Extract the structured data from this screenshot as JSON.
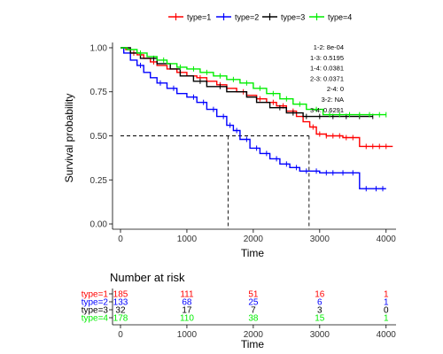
{
  "chart_data": [
    {
      "type": "line",
      "subtype": "step",
      "xlabel": "Time",
      "ylabel": "Survival probability",
      "xlim": [
        -120,
        4150
      ],
      "ylim": [
        -0.03,
        1.03
      ],
      "xticks": [
        0,
        1000,
        2000,
        3000,
        4000
      ],
      "yticks": [
        0.0,
        0.25,
        0.5,
        0.75,
        1.0
      ],
      "ytick_labels": [
        "0.00",
        "0.25",
        "0.50",
        "0.75",
        "1.00"
      ],
      "grid": false,
      "legend": "top",
      "series": [
        {
          "name": "type=1",
          "color": "#ff0000",
          "points": [
            [
              0,
              1.0
            ],
            [
              80,
              0.99
            ],
            [
              150,
              0.97
            ],
            [
              250,
              0.96
            ],
            [
              350,
              0.94
            ],
            [
              450,
              0.92
            ],
            [
              550,
              0.9
            ],
            [
              700,
              0.88
            ],
            [
              850,
              0.86
            ],
            [
              1000,
              0.84
            ],
            [
              1150,
              0.83
            ],
            [
              1300,
              0.81
            ],
            [
              1450,
              0.79
            ],
            [
              1600,
              0.77
            ],
            [
              1750,
              0.75
            ],
            [
              1900,
              0.73
            ],
            [
              2050,
              0.71
            ],
            [
              2200,
              0.69
            ],
            [
              2350,
              0.67
            ],
            [
              2500,
              0.64
            ],
            [
              2650,
              0.61
            ],
            [
              2750,
              0.58
            ],
            [
              2850,
              0.55
            ],
            [
              2950,
              0.51
            ],
            [
              3100,
              0.5
            ],
            [
              3350,
              0.49
            ],
            [
              3600,
              0.44
            ],
            [
              4100,
              0.44
            ]
          ],
          "censor": [
            200,
            500,
            900,
            1200,
            1500,
            1850,
            2100,
            2300,
            2450,
            2600,
            2900,
            3000,
            3100,
            3200,
            3300,
            3400,
            3500,
            3700,
            3800,
            3900,
            4000
          ]
        },
        {
          "name": "type=2",
          "color": "#0000ff",
          "points": [
            [
              0,
              1.0
            ],
            [
              50,
              0.97
            ],
            [
              150,
              0.93
            ],
            [
              250,
              0.9
            ],
            [
              350,
              0.86
            ],
            [
              450,
              0.83
            ],
            [
              550,
              0.8
            ],
            [
              700,
              0.77
            ],
            [
              850,
              0.74
            ],
            [
              1000,
              0.72
            ],
            [
              1150,
              0.69
            ],
            [
              1300,
              0.65
            ],
            [
              1450,
              0.61
            ],
            [
              1600,
              0.56
            ],
            [
              1700,
              0.53
            ],
            [
              1800,
              0.48
            ],
            [
              1950,
              0.43
            ],
            [
              2100,
              0.4
            ],
            [
              2250,
              0.37
            ],
            [
              2400,
              0.34
            ],
            [
              2550,
              0.32
            ],
            [
              2700,
              0.3
            ],
            [
              3000,
              0.29
            ],
            [
              3600,
              0.2
            ],
            [
              4000,
              0.2
            ]
          ],
          "censor": [
            300,
            600,
            800,
            1100,
            1250,
            1400,
            1550,
            1650,
            1750,
            1900,
            2050,
            2200,
            2350,
            2500,
            2650,
            2800,
            2950,
            3100,
            3200,
            3350,
            3500,
            3700,
            3850,
            3950
          ]
        },
        {
          "name": "type=3",
          "color": "#000000",
          "points": [
            [
              0,
              1.0
            ],
            [
              150,
              0.97
            ],
            [
              300,
              0.94
            ],
            [
              550,
              0.91
            ],
            [
              750,
              0.88
            ],
            [
              900,
              0.84
            ],
            [
              1100,
              0.81
            ],
            [
              1300,
              0.78
            ],
            [
              1600,
              0.75
            ],
            [
              1900,
              0.72
            ],
            [
              2050,
              0.69
            ],
            [
              2250,
              0.66
            ],
            [
              2500,
              0.63
            ],
            [
              2750,
              0.61
            ],
            [
              3000,
              0.61
            ],
            [
              3800,
              0.61
            ]
          ],
          "censor": [
            500,
            1200,
            1500,
            2400,
            2600,
            2800,
            3000,
            3200,
            3400,
            3600,
            3800
          ]
        },
        {
          "name": "type=4",
          "color": "#00ee00",
          "points": [
            [
              0,
              1.0
            ],
            [
              100,
              0.99
            ],
            [
              250,
              0.97
            ],
            [
              400,
              0.95
            ],
            [
              550,
              0.93
            ],
            [
              700,
              0.91
            ],
            [
              850,
              0.89
            ],
            [
              1000,
              0.88
            ],
            [
              1200,
              0.86
            ],
            [
              1400,
              0.84
            ],
            [
              1600,
              0.82
            ],
            [
              1800,
              0.8
            ],
            [
              2000,
              0.77
            ],
            [
              2200,
              0.74
            ],
            [
              2400,
              0.71
            ],
            [
              2600,
              0.68
            ],
            [
              2800,
              0.65
            ],
            [
              3050,
              0.62
            ],
            [
              3300,
              0.62
            ],
            [
              4000,
              0.62
            ]
          ],
          "censor": [
            300,
            650,
            900,
            1100,
            1300,
            1500,
            1700,
            1900,
            2100,
            2300,
            2500,
            2700,
            2950,
            3150,
            3300,
            3450,
            3600,
            3750,
            3900,
            4000
          ]
        }
      ],
      "median_line_y": 0.5,
      "median_x": [
        1620,
        2840
      ],
      "pvalue_lines": [
        "1-2: 8e-04",
        "1-3: 0.5195",
        "1-4: 0.0381",
        "2-3: 0.0371",
        "2-4: 0",
        "3-2: NA",
        "3-4: 0.6291"
      ]
    },
    {
      "type": "table",
      "title": "Number at risk",
      "xlabel": "Time",
      "xticks": [
        0,
        1000,
        2000,
        3000,
        4000
      ],
      "rows": [
        {
          "label": "type=1",
          "color": "#ff0000",
          "values": [
            "185",
            "111",
            "51",
            "16",
            "1"
          ]
        },
        {
          "label": "type=2",
          "color": "#0000ff",
          "values": [
            "133",
            "68",
            "25",
            "6",
            "1"
          ]
        },
        {
          "label": "type=3",
          "color": "#000000",
          "values": [
            "32",
            "17",
            "7",
            "3",
            "0"
          ]
        },
        {
          "label": "type=4",
          "color": "#00ee00",
          "values": [
            "178",
            "110",
            "38",
            "15",
            "1"
          ]
        }
      ]
    }
  ]
}
